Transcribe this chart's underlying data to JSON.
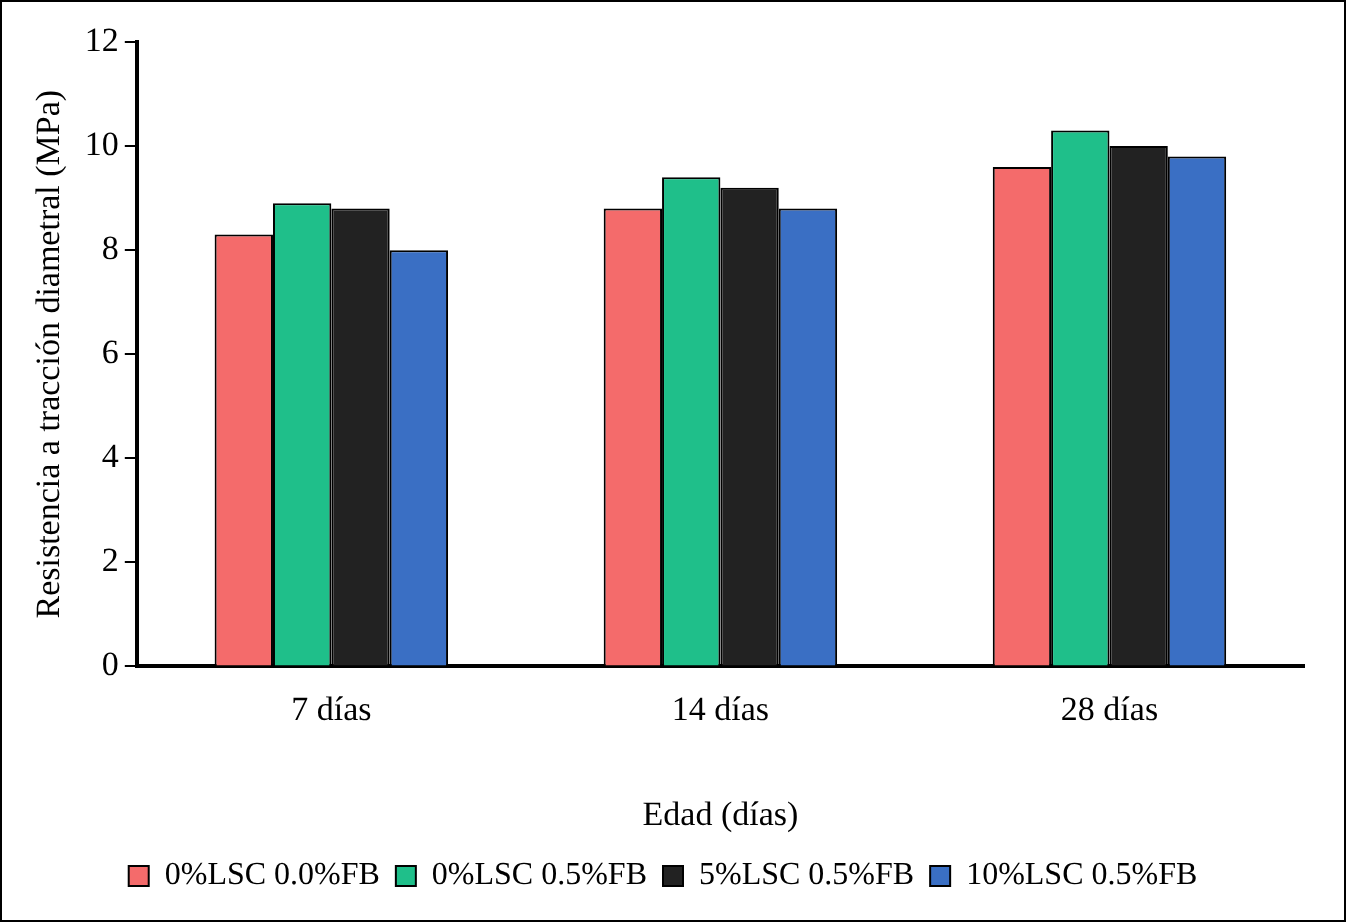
{
  "chart_data": {
    "type": "bar",
    "categories": [
      "7 días",
      "14 días",
      "28 días"
    ],
    "xlabel": "Edad (días)",
    "ylabel": "Resistencia a tracción diametral (MPa)",
    "series": [
      {
        "name": "0%LSC 0.0%FB",
        "color": "#f46b6b",
        "values": [
          8.3,
          8.8,
          9.6
        ]
      },
      {
        "name": "0%LSC 0.5%FB",
        "color": "#1fbf8a",
        "values": [
          8.9,
          9.4,
          10.3
        ]
      },
      {
        "name": "5%LSC 0.5%FB",
        "color": "#222222",
        "values": [
          8.8,
          9.2,
          10.0
        ]
      },
      {
        "name": "10%LSC 0.5%FB",
        "color": "#3a6fc4",
        "values": [
          8.0,
          8.8,
          9.8
        ]
      }
    ],
    "ylim": [
      0,
      12
    ],
    "yticks": [
      0,
      2,
      4,
      6,
      8,
      10,
      12
    ],
    "grid": false,
    "legend": "bottom"
  }
}
